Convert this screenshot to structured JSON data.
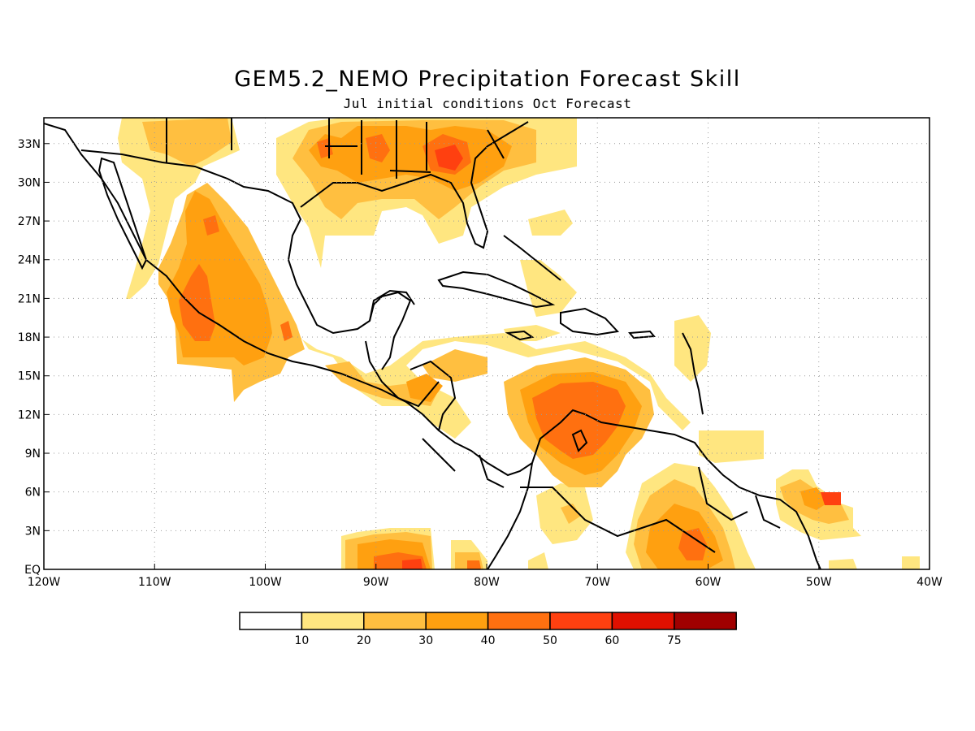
{
  "title": "GEM5.2_NEMO Precipitation Forecast Skill",
  "subtitle": "Jul initial conditions  Oct Forecast",
  "map": {
    "region": "Central America / Caribbean / Gulf of Mexico",
    "lon_range": [
      -120,
      -40
    ],
    "lat_range": [
      0,
      35
    ],
    "x_ticks": [
      "120W",
      "110W",
      "100W",
      "90W",
      "80W",
      "70W",
      "60W",
      "50W",
      "40W"
    ],
    "y_ticks": [
      "EQ",
      "3N",
      "6N",
      "9N",
      "12N",
      "15N",
      "18N",
      "21N",
      "24N",
      "27N",
      "30N",
      "33N"
    ],
    "grid": "dotted",
    "coastline_color": "#000000"
  },
  "colorbar": {
    "labels": [
      "10",
      "20",
      "30",
      "40",
      "50",
      "60",
      "75"
    ],
    "colors": [
      "#ffffff",
      "#ffe680",
      "#ffbf40",
      "#ffa010",
      "#ff7010",
      "#ff4010",
      "#e01000",
      "#a00000"
    ]
  }
}
